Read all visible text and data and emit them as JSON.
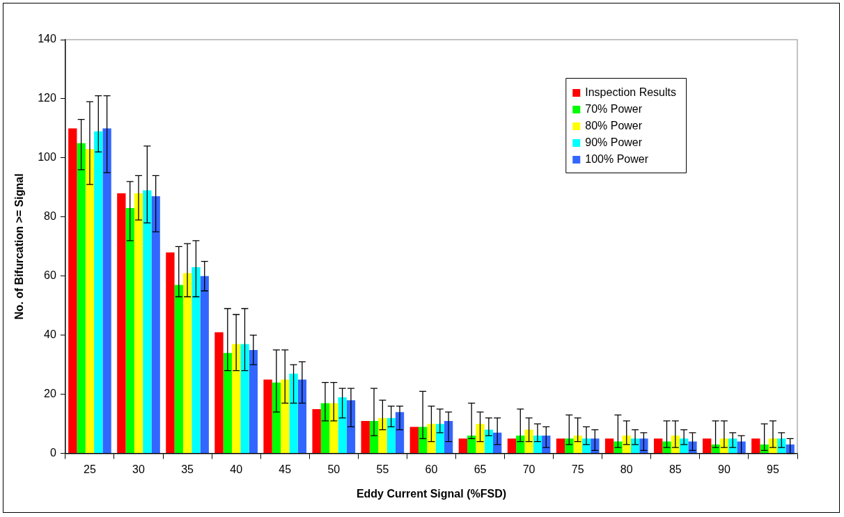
{
  "chart_data": {
    "type": "bar",
    "xlabel": "Eddy Current Signal (%FSD)",
    "ylabel": "No. of Bifurcation >= Signal",
    "categories": [
      "25",
      "30",
      "35",
      "40",
      "45",
      "50",
      "55",
      "60",
      "65",
      "70",
      "75",
      "80",
      "85",
      "90",
      "95"
    ],
    "ylim": [
      0,
      140
    ],
    "yticks": [
      0,
      20,
      40,
      60,
      80,
      100,
      120,
      140
    ],
    "grid": false,
    "legend": "top right",
    "series": [
      {
        "name": "Inspection Results",
        "color": "#ff0000",
        "values": [
          110,
          88,
          68,
          41,
          25,
          15,
          11,
          9,
          5,
          5,
          5,
          5,
          5,
          5,
          5
        ]
      },
      {
        "name": "70% Power",
        "color": "#00ff00",
        "values": [
          105,
          83,
          57,
          34,
          24,
          17,
          11,
          9,
          6,
          6,
          5,
          4,
          4,
          3,
          3
        ],
        "errors": [
          [
            96,
            113
          ],
          [
            72,
            92
          ],
          [
            53,
            70
          ],
          [
            28,
            49
          ],
          [
            14,
            35
          ],
          [
            11,
            24
          ],
          [
            6,
            22
          ],
          [
            5,
            21
          ],
          [
            5,
            17
          ],
          [
            4,
            15
          ],
          [
            3,
            13
          ],
          [
            2,
            13
          ],
          [
            2,
            11
          ],
          [
            2,
            11
          ],
          [
            1,
            10
          ]
        ]
      },
      {
        "name": "80% Power",
        "color": "#ffff00",
        "values": [
          103,
          88,
          61,
          37,
          25,
          17,
          12,
          10,
          10,
          8,
          6,
          6,
          6,
          5,
          5
        ],
        "errors": [
          [
            91,
            119
          ],
          [
            79,
            94
          ],
          [
            53,
            71
          ],
          [
            28,
            47
          ],
          [
            17,
            35
          ],
          [
            11,
            24
          ],
          [
            8,
            18
          ],
          [
            4,
            16
          ],
          [
            4,
            14
          ],
          [
            4,
            12
          ],
          [
            4,
            12
          ],
          [
            3,
            11
          ],
          [
            2,
            11
          ],
          [
            2,
            11
          ],
          [
            2,
            11
          ]
        ]
      },
      {
        "name": "90% Power",
        "color": "#00ffff",
        "values": [
          109,
          89,
          63,
          37,
          27,
          19,
          12,
          10,
          8,
          6,
          5,
          5,
          5,
          5,
          5
        ],
        "errors": [
          [
            102,
            121
          ],
          [
            78,
            104
          ],
          [
            53,
            72
          ],
          [
            28,
            49
          ],
          [
            17,
            30
          ],
          [
            12,
            22
          ],
          [
            9,
            16
          ],
          [
            7,
            15
          ],
          [
            6,
            12
          ],
          [
            4,
            10
          ],
          [
            3,
            9
          ],
          [
            3,
            8
          ],
          [
            3,
            8
          ],
          [
            2,
            7
          ],
          [
            2,
            7
          ]
        ]
      },
      {
        "name": "100% Power",
        "color": "#3366ff",
        "values": [
          110,
          87,
          60,
          35,
          25,
          18,
          14,
          11,
          7,
          6,
          5,
          5,
          4,
          4,
          3
        ],
        "errors": [
          [
            95,
            121
          ],
          [
            75,
            94
          ],
          [
            55,
            65
          ],
          [
            30,
            40
          ],
          [
            17,
            31
          ],
          [
            9,
            22
          ],
          [
            8,
            16
          ],
          [
            4,
            14
          ],
          [
            3,
            12
          ],
          [
            2,
            9
          ],
          [
            1,
            8
          ],
          [
            1,
            7
          ],
          [
            1,
            7
          ],
          [
            0,
            6
          ],
          [
            0,
            5
          ]
        ]
      }
    ]
  }
}
